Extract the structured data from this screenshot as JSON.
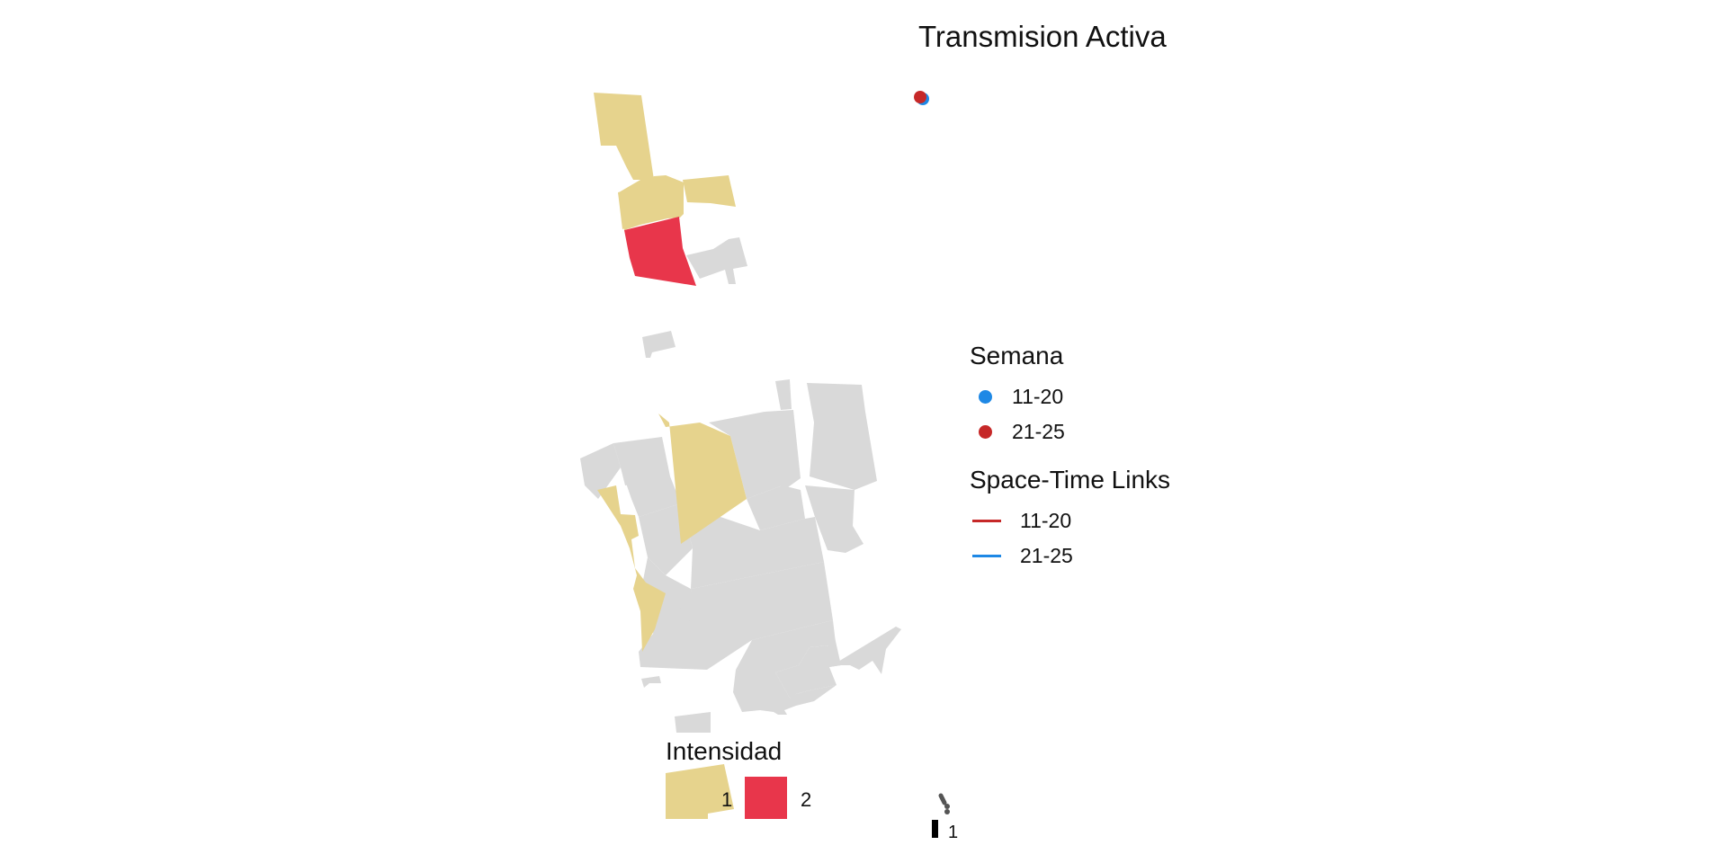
{
  "title": "Transmision Activa",
  "colors": {
    "intensity_1": "#E6D38D",
    "intensity_2": "#E8364B",
    "no_data": "#D9D9D9",
    "week_11_20": "#1E88E5",
    "week_21_25": "#C62828",
    "link_11_20": "#C62828",
    "link_21_25": "#1E88E5"
  },
  "legend_semana": {
    "title": "Semana",
    "items": [
      {
        "label": "11-20",
        "color": "#1E88E5"
      },
      {
        "label": "21-25",
        "color": "#C62828"
      }
    ]
  },
  "legend_links": {
    "title": "Space-Time Links",
    "items": [
      {
        "label": "11-20",
        "color": "#C62828"
      },
      {
        "label": "21-25",
        "color": "#1E88E5"
      }
    ]
  },
  "legend_intensidad": {
    "title": "Intensidad",
    "items": [
      {
        "label": "1",
        "color": "#E6D38D"
      },
      {
        "label": "2",
        "color": "#E8364B"
      }
    ]
  },
  "legend_size": {
    "items": [
      {
        "label": "1"
      }
    ]
  },
  "regions": {
    "north_intensity_1": 3,
    "north_intensity_2": 1,
    "south_intensity_1": 3
  }
}
